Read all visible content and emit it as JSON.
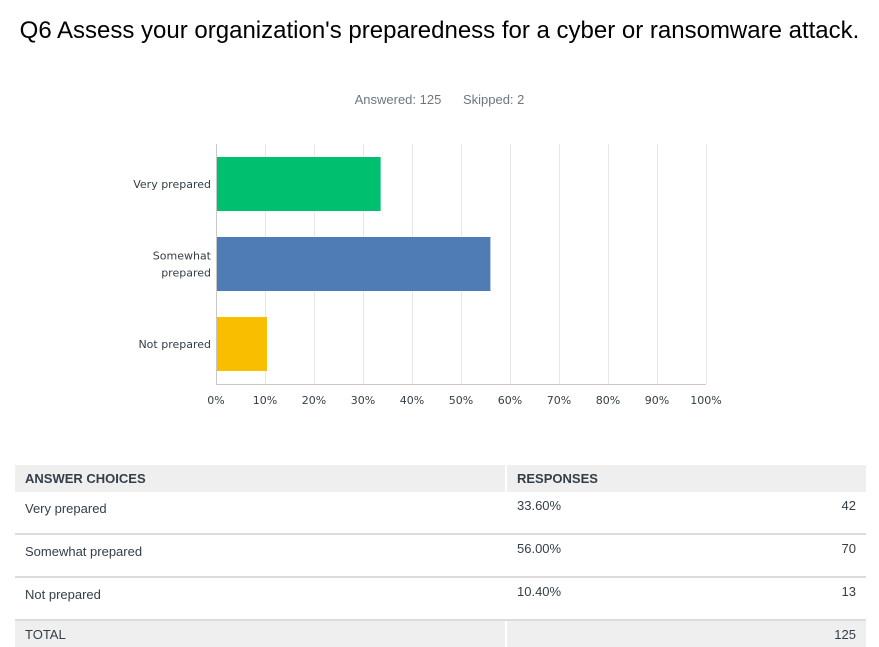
{
  "question": {
    "title": "Q6 Assess your organization's preparedness for a cyber or ransomware attack.",
    "answered": "Answered: 125",
    "skipped": "Skipped: 2"
  },
  "chart_data": {
    "type": "bar",
    "orientation": "horizontal",
    "categories": [
      [
        "Very prepared"
      ],
      [
        "Somewhat",
        "prepared"
      ],
      [
        "Not prepared"
      ]
    ],
    "values": [
      33.6,
      56.0,
      10.4
    ],
    "colors": [
      "#00bf6f",
      "#507cb6",
      "#f9be00"
    ],
    "xlim": [
      0,
      100
    ],
    "ticks": [
      "0%",
      "10%",
      "20%",
      "30%",
      "40%",
      "50%",
      "60%",
      "70%",
      "80%",
      "90%",
      "100%"
    ],
    "grid": true
  },
  "table": {
    "headers": [
      "ANSWER CHOICES",
      "RESPONSES"
    ],
    "rows": [
      {
        "choice": "Very prepared",
        "percent": "33.60%",
        "count": "42"
      },
      {
        "choice": "Somewhat prepared",
        "percent": "56.00%",
        "count": "70"
      },
      {
        "choice": "Not prepared",
        "percent": "10.40%",
        "count": "13"
      }
    ],
    "total": {
      "label": "TOTAL",
      "count": "125"
    }
  }
}
